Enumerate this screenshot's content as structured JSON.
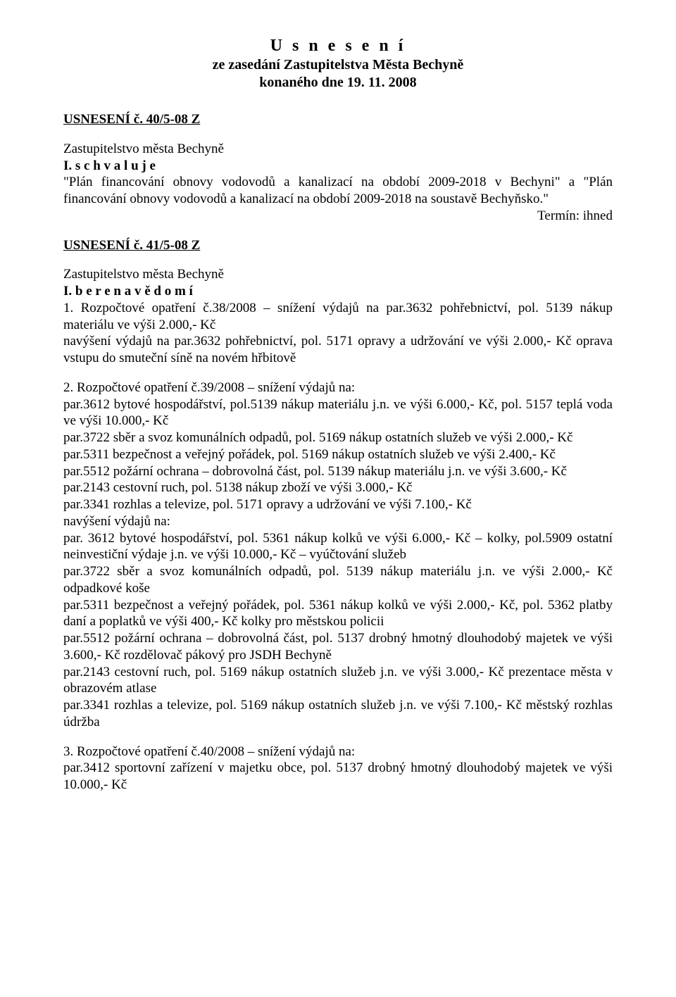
{
  "title": {
    "main": "U s n e s e n í",
    "sub1": "ze zasedání  Zastupitelstva Města Bechyně",
    "sub2": "konaného dne 19. 11. 2008"
  },
  "s40": {
    "heading": "USNESENÍ č. 40/5-08 Z",
    "l1": "Zastupitelstvo města Bechyně",
    "l2": "I.  s c h v a l u j e",
    "body": "\"Plán financování obnovy vodovodů a kanalizací na období 2009-2018 v Bechyni\" a \"Plán financování obnovy vodovodů a kanalizací na období 2009-2018 na soustavě Bechyňsko.\"",
    "termin": "Termín: ihned"
  },
  "s41": {
    "heading": "USNESENÍ č. 41/5-08 Z",
    "l1": "Zastupitelstvo města Bechyně",
    "l2": "I.  b e r e   n a   v ě d o m í",
    "p1a": "1. Rozpočtové opatření č.38/2008 – snížení výdajů na par.3632 pohřebnictví, pol. 5139 nákup materiálu ve výši 2.000,- Kč",
    "p1b": "navýšení výdajů na par.3632 pohřebnictví, pol. 5171 opravy a udržování ve výši 2.000,- Kč oprava vstupu do smuteční síně na novém hřbitově",
    "p2a": "2. Rozpočtové opatření č.39/2008 – snížení výdajů na:",
    "p2b": "par.3612 bytové hospodářství, pol.5139 nákup materiálu j.n. ve výši 6.000,- Kč, pol. 5157 teplá voda ve výši 10.000,- Kč",
    "p2c": "par.3722 sběr a svoz komunálních odpadů, pol. 5169 nákup ostatních služeb ve výši 2.000,- Kč",
    "p2d": "par.5311 bezpečnost a veřejný pořádek, pol. 5169 nákup ostatních služeb ve výši 2.400,- Kč",
    "p2e": "par.5512 požární ochrana – dobrovolná část, pol. 5139 nákup materiálu j.n. ve výši 3.600,- Kč",
    "p2f": "par.2143 cestovní ruch, pol. 5138 nákup zboží ve výši 3.000,- Kč",
    "p2g": "par.3341 rozhlas a televize, pol. 5171 opravy a udržování ve výši 7.100,- Kč",
    "p2h": "navýšení výdajů na:",
    "p2i": "par. 3612 bytové hospodářství, pol. 5361 nákup kolků ve výši 6.000,- Kč – kolky, pol.5909 ostatní neinvestiční výdaje j.n. ve výši 10.000,- Kč – vyúčtování služeb",
    "p2j": "par.3722 sběr a svoz komunálních odpadů, pol. 5139 nákup materiálu j.n. ve výši 2.000,- Kč odpadkové koše",
    "p2k": "par.5311 bezpečnost a veřejný pořádek, pol. 5361 nákup kolků ve výši 2.000,- Kč, pol. 5362 platby daní a poplatků ve výši 400,- Kč kolky pro městskou policii",
    "p2l": "par.5512 požární ochrana – dobrovolná část, pol. 5137 drobný hmotný dlouhodobý majetek ve výši 3.600,- Kč rozdělovač pákový pro JSDH Bechyně",
    "p2m": "par.2143 cestovní ruch, pol. 5169 nákup ostatních služeb j.n. ve výši 3.000,- Kč prezentace města v obrazovém atlase",
    "p2n": "par.3341 rozhlas a televize, pol. 5169 nákup ostatních služeb j.n. ve výši 7.100,- Kč městský rozhlas údržba",
    "p3a": "3. Rozpočtové opatření č.40/2008 – snížení výdajů na:",
    "p3b": "par.3412 sportovní zařízení v majetku obce, pol. 5137 drobný hmotný dlouhodobý majetek ve výši 10.000,- Kč"
  }
}
